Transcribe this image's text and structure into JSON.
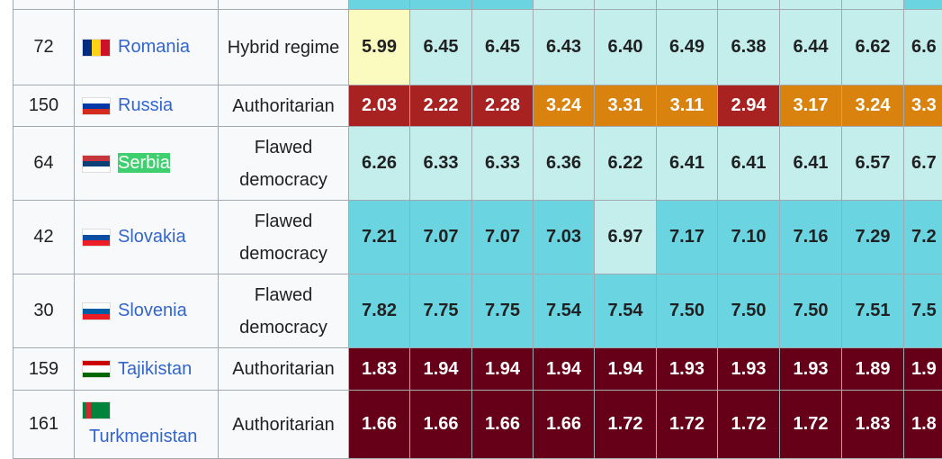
{
  "colors": {
    "full_democracy": "#6ad4e0",
    "flawed_democracy": "#c4eeec",
    "hybrid_regime": "#fbfbc0",
    "authoritarian_red": "#a82222",
    "authoritarian_orange": "#d9820e",
    "authoritarian_dark": "#650018"
  },
  "header_row_classes": [
    "ft",
    "ft",
    "ft",
    "fl",
    "fl",
    "fl",
    "fl",
    "fl",
    "fl",
    "ft"
  ],
  "rows": [
    {
      "rank": "72",
      "country": "Romania",
      "flag": "romania-flag",
      "regime": "Hybrid regime",
      "values": [
        "5.99",
        "6.45",
        "6.45",
        "6.43",
        "6.40",
        "6.49",
        "6.38",
        "6.44",
        "6.62",
        "6.6"
      ],
      "classes": [
        "hy",
        "fl",
        "fl",
        "fl",
        "fl",
        "fl",
        "fl",
        "fl",
        "fl",
        "fl"
      ],
      "h": 84
    },
    {
      "rank": "150",
      "country": "Russia",
      "flag": "russia-flag",
      "regime": "Authoritarian",
      "values": [
        "2.03",
        "2.22",
        "2.28",
        "3.24",
        "3.31",
        "3.11",
        "2.94",
        "3.17",
        "3.24",
        "3.3"
      ],
      "classes": [
        "rd",
        "rd",
        "rd",
        "or",
        "or",
        "or",
        "rd",
        "or",
        "or",
        "or"
      ],
      "h": 46
    },
    {
      "rank": "64",
      "country": "Serbia",
      "flag": "serbia-flag",
      "highlight": true,
      "regime": "Flawed democracy",
      "values": [
        "6.26",
        "6.33",
        "6.33",
        "6.36",
        "6.22",
        "6.41",
        "6.41",
        "6.41",
        "6.57",
        "6.7"
      ],
      "classes": [
        "fl",
        "fl",
        "fl",
        "fl",
        "fl",
        "fl",
        "fl",
        "fl",
        "fl",
        "fl"
      ],
      "h": 82
    },
    {
      "rank": "42",
      "country": "Slovakia",
      "flag": "slovakia-flag",
      "regime": "Flawed democracy",
      "values": [
        "7.21",
        "7.07",
        "7.07",
        "7.03",
        "6.97",
        "7.17",
        "7.10",
        "7.16",
        "7.29",
        "7.2"
      ],
      "classes": [
        "ft",
        "ft",
        "ft",
        "ft",
        "fl",
        "ft",
        "ft",
        "ft",
        "ft",
        "ft"
      ],
      "h": 82
    },
    {
      "rank": "30",
      "country": "Slovenia",
      "flag": "slovenia-flag",
      "regime": "Flawed democracy",
      "values": [
        "7.82",
        "7.75",
        "7.75",
        "7.54",
        "7.54",
        "7.50",
        "7.50",
        "7.50",
        "7.51",
        "7.5"
      ],
      "classes": [
        "ft",
        "ft",
        "ft",
        "ft",
        "ft",
        "ft",
        "ft",
        "ft",
        "ft",
        "ft"
      ],
      "h": 82
    },
    {
      "rank": "159",
      "country": "Tajikistan",
      "flag": "tajikistan-flag",
      "regime": "Authoritarian",
      "values": [
        "1.83",
        "1.94",
        "1.94",
        "1.94",
        "1.94",
        "1.93",
        "1.93",
        "1.93",
        "1.89",
        "1.9"
      ],
      "classes": [
        "mr",
        "mr",
        "mr",
        "mr",
        "mr",
        "mr",
        "mr",
        "mr",
        "mr",
        "mr"
      ],
      "h": 47
    },
    {
      "rank": "161",
      "country": "Turkmenistan",
      "flag": "turkmenistan-flag",
      "regime": "Authoritarian",
      "values": [
        "1.66",
        "1.66",
        "1.66",
        "1.66",
        "1.72",
        "1.72",
        "1.72",
        "1.72",
        "1.83",
        "1.8"
      ],
      "classes": [
        "mr",
        "mr",
        "mr",
        "mr",
        "mr",
        "mr",
        "mr",
        "mr",
        "mr",
        "mr"
      ],
      "h": 80
    }
  ]
}
